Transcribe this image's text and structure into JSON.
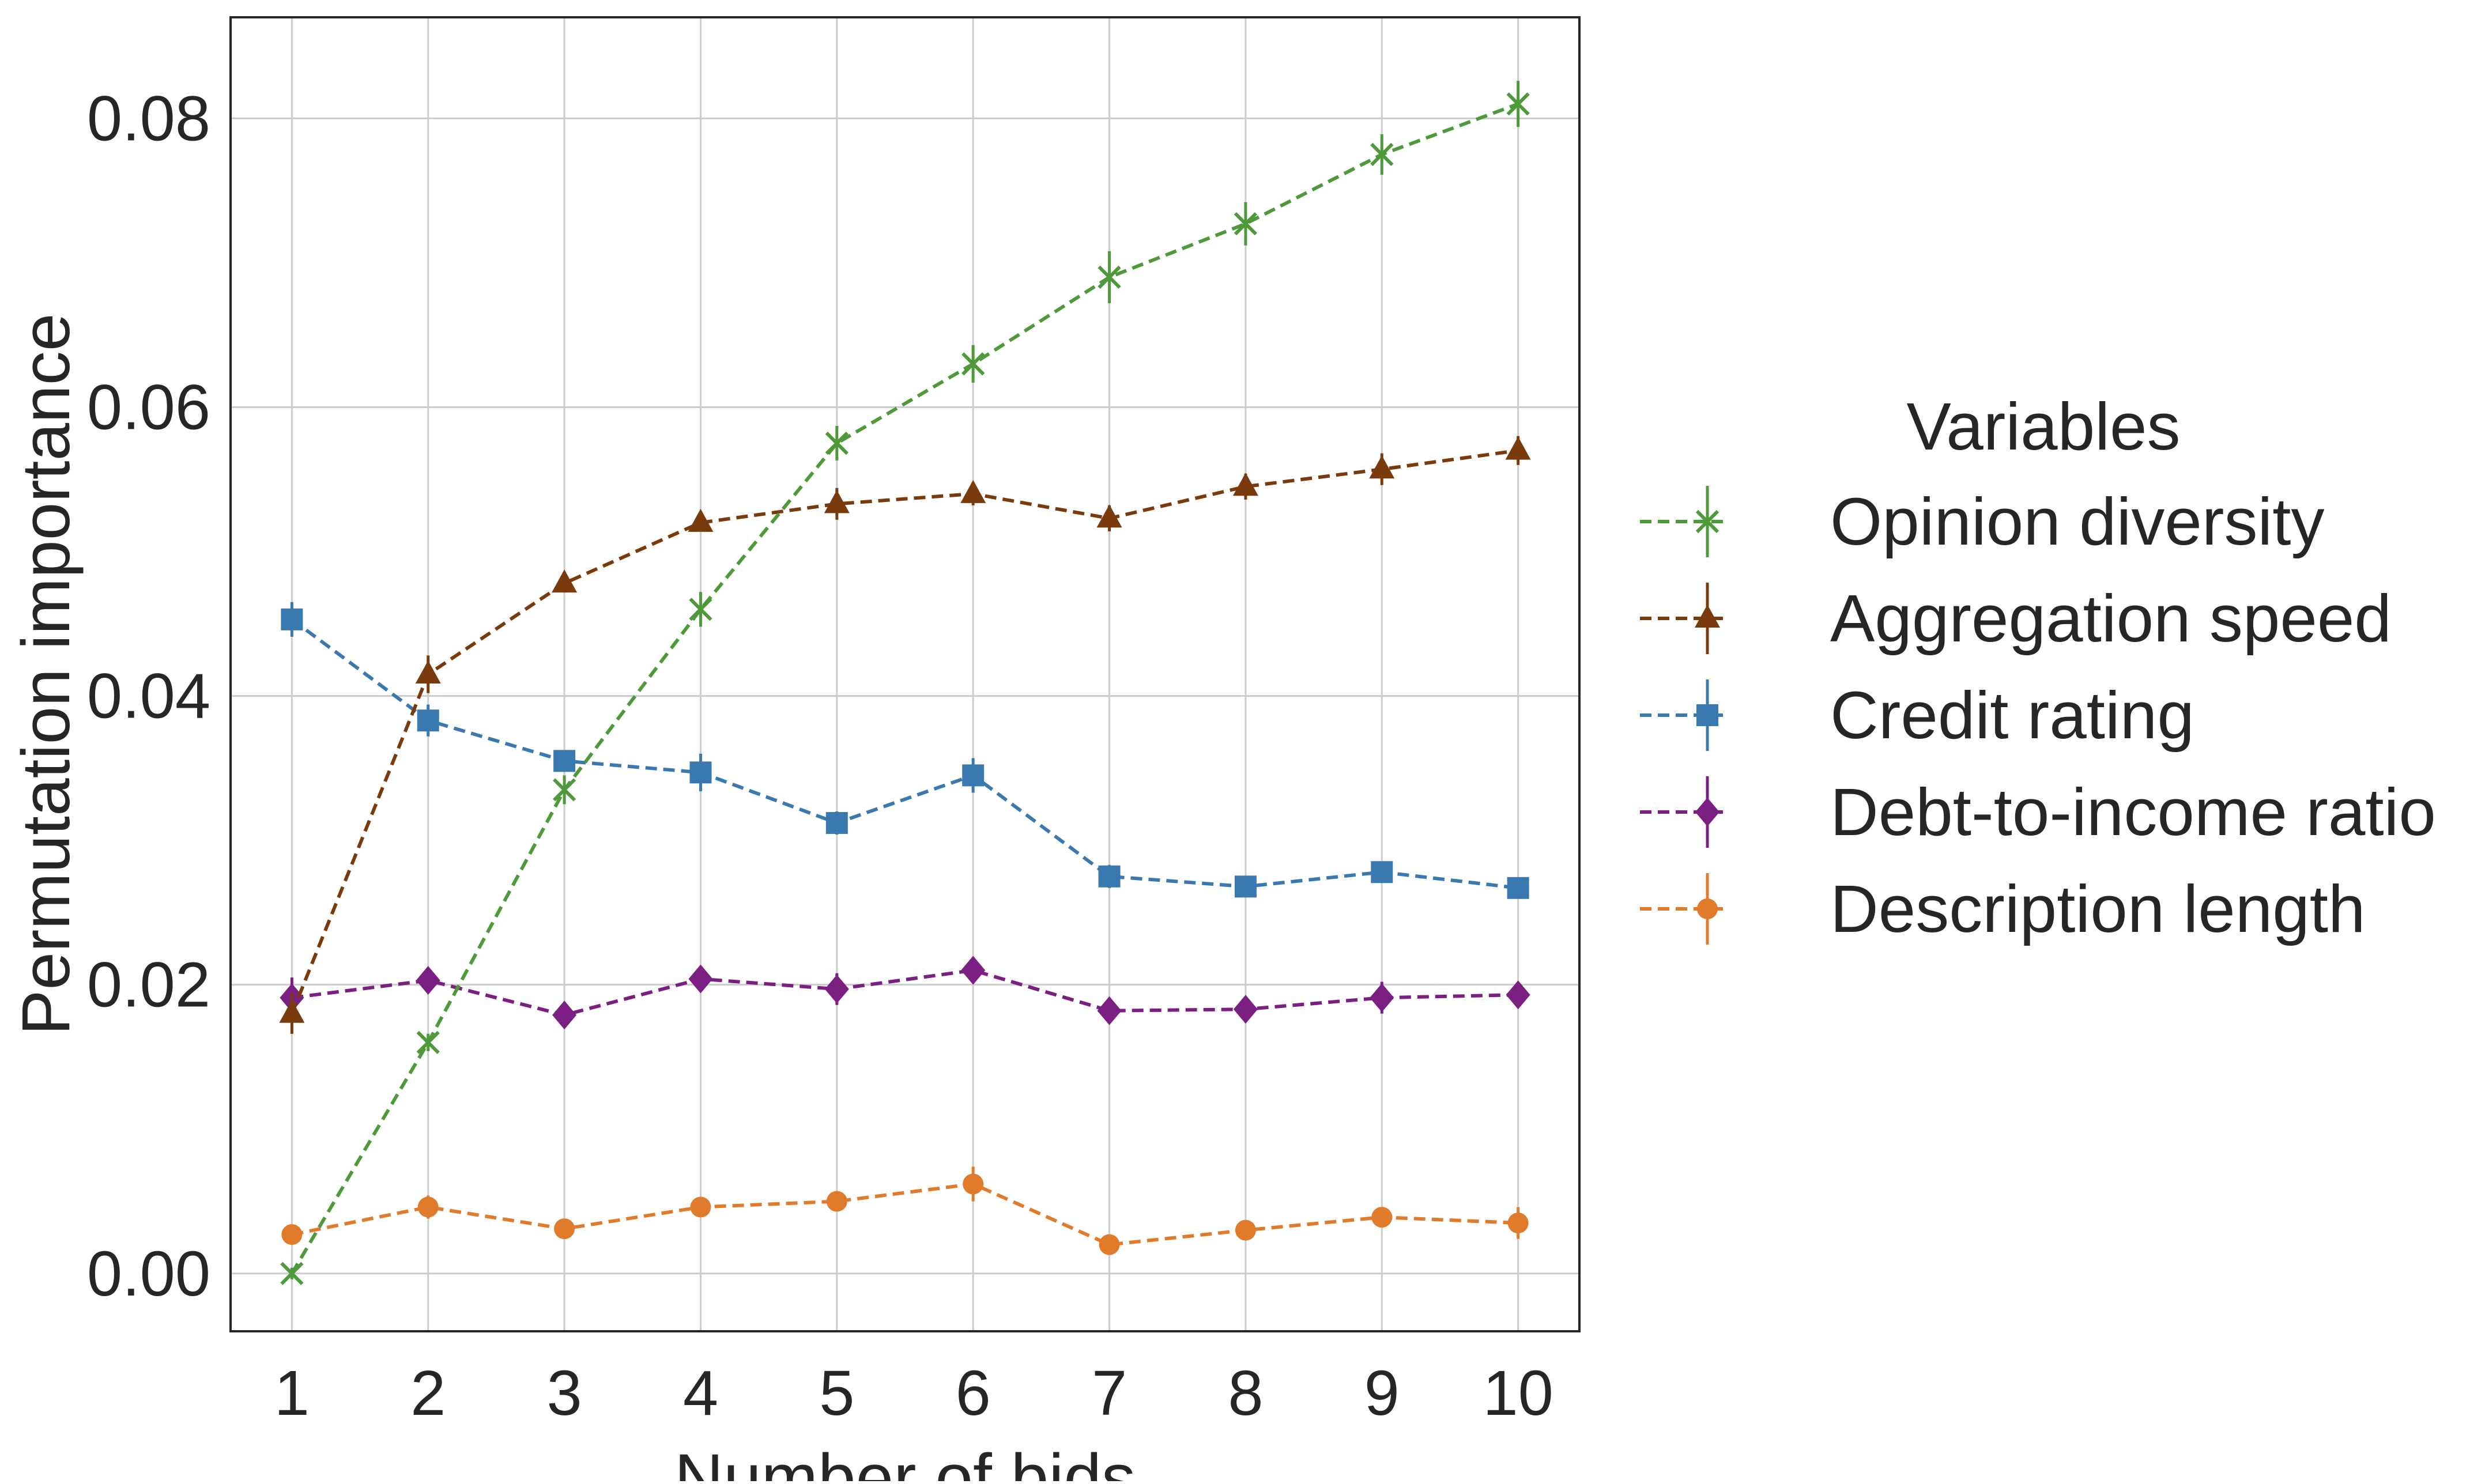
{
  "chart_data": {
    "type": "line",
    "xlabel": "Number of bids",
    "ylabel": "Permutation importance",
    "x": [
      1,
      2,
      3,
      4,
      5,
      6,
      7,
      8,
      9,
      10
    ],
    "x_ticks": [
      "1",
      "2",
      "3",
      "4",
      "5",
      "6",
      "7",
      "8",
      "9",
      "10"
    ],
    "xlim": [
      0.55,
      10.45
    ],
    "ylim": [
      -0.004,
      0.087
    ],
    "y_ticks": [
      0.0,
      0.02,
      0.04,
      0.06,
      0.08
    ],
    "y_tick_labels": [
      "0.00",
      "0.02",
      "0.04",
      "0.06",
      "0.08"
    ],
    "grid": true,
    "line_style": "dashed",
    "error_bars": true,
    "legend": {
      "title": "Variables",
      "placement": "right, outside plot"
    },
    "series": [
      {
        "name": "Opinion diversity",
        "color": "#4e9a3a",
        "marker": "x",
        "values": [
          0.0,
          0.016,
          0.0335,
          0.046,
          0.0575,
          0.063,
          0.069,
          0.0727,
          0.0775,
          0.081
        ],
        "errors": [
          0.0004,
          0.0006,
          0.001,
          0.0012,
          0.0012,
          0.0013,
          0.0018,
          0.0015,
          0.0014,
          0.0016
        ]
      },
      {
        "name": "Aggregation speed",
        "color": "#7a3b0c",
        "marker": "triangle",
        "values": [
          0.018,
          0.0415,
          0.0478,
          0.052,
          0.0533,
          0.054,
          0.0523,
          0.0545,
          0.0557,
          0.057
        ],
        "errors": [
          0.0014,
          0.0013,
          0.0005,
          0.0006,
          0.0011,
          0.0008,
          0.0009,
          0.0009,
          0.0011,
          0.001
        ]
      },
      {
        "name": "Credit rating",
        "color": "#3a78b0",
        "marker": "square",
        "values": [
          0.0453,
          0.0383,
          0.0355,
          0.0347,
          0.0312,
          0.0345,
          0.0275,
          0.0268,
          0.0278,
          0.0267
        ],
        "errors": [
          0.0012,
          0.0011,
          0.0006,
          0.0013,
          0.0008,
          0.0012,
          0.0008,
          0.0006,
          0.0007,
          0.0006
        ]
      },
      {
        "name": "Debt-to-income ratio",
        "color": "#7b1f82",
        "marker": "diamond",
        "values": [
          0.0191,
          0.0203,
          0.0179,
          0.0204,
          0.0197,
          0.021,
          0.0182,
          0.0183,
          0.0191,
          0.0193
        ],
        "errors": [
          0.0014,
          0.0008,
          0.0006,
          0.0007,
          0.0011,
          0.0009,
          0.0007,
          0.0006,
          0.0011,
          0.0008
        ]
      },
      {
        "name": "Description length",
        "color": "#e07b2c",
        "marker": "circle",
        "values": [
          0.0027,
          0.0046,
          0.0031,
          0.0046,
          0.005,
          0.0062,
          0.002,
          0.003,
          0.0039,
          0.0035
        ],
        "errors": [
          0.0005,
          0.0008,
          0.0004,
          0.0005,
          0.0007,
          0.0012,
          0.0004,
          0.0005,
          0.0006,
          0.0011
        ]
      }
    ]
  }
}
